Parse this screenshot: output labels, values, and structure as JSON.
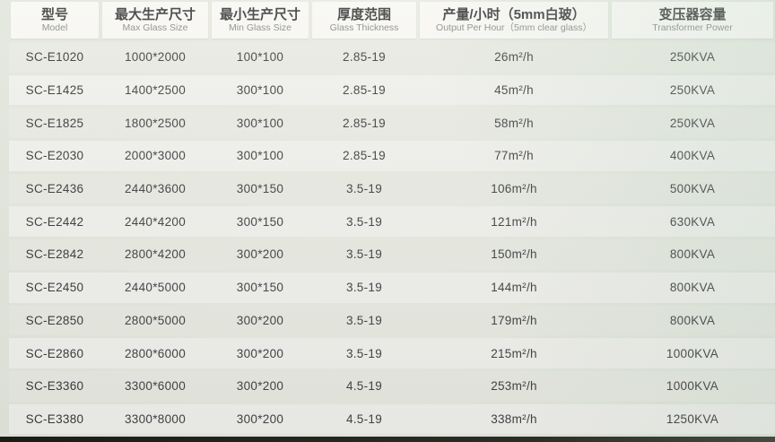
{
  "colors": {
    "page_background": "#e5e9df",
    "header_cell": "#f8f7f3",
    "row_odd": "#e8eae2",
    "row_even": "#f0f0ec",
    "text_primary": "#3f4243",
    "text_secondary": "#8a8d88",
    "bottom_edge": "#24241e"
  },
  "table": {
    "columns": [
      {
        "zh": "型号",
        "en": "Model"
      },
      {
        "zh": "最大生产尺寸",
        "en": "Max Glass Size"
      },
      {
        "zh": "最小生产尺寸",
        "en": "Min Glass Size"
      },
      {
        "zh": "厚度范围",
        "en": "Glass Thickness"
      },
      {
        "zh": "产量/小时（5mm白玻）",
        "en": "Output Per Hour（5mm clear glass）"
      },
      {
        "zh": "变压器容量",
        "en": "Transformer Power"
      }
    ],
    "rows": [
      [
        "SC-E1020",
        "1000*2000",
        "100*100",
        "2.85-19",
        "26m²/h",
        "250KVA"
      ],
      [
        "SC-E1425",
        "1400*2500",
        "300*100",
        "2.85-19",
        "45m²/h",
        "250KVA"
      ],
      [
        "SC-E1825",
        "1800*2500",
        "300*100",
        "2.85-19",
        "58m²/h",
        "250KVA"
      ],
      [
        "SC-E2030",
        "2000*3000",
        "300*100",
        "2.85-19",
        "77m²/h",
        "400KVA"
      ],
      [
        "SC-E2436",
        "2440*3600",
        "300*150",
        "3.5-19",
        "106m²/h",
        "500KVA"
      ],
      [
        "SC-E2442",
        "2440*4200",
        "300*150",
        "3.5-19",
        "121m²/h",
        "630KVA"
      ],
      [
        "SC-E2842",
        "2800*4200",
        "300*200",
        "3.5-19",
        "150m²/h",
        "800KVA"
      ],
      [
        "SC-E2450",
        "2440*5000",
        "300*150",
        "3.5-19",
        "144m²/h",
        "800KVA"
      ],
      [
        "SC-E2850",
        "2800*5000",
        "300*200",
        "3.5-19",
        "179m²/h",
        "800KVA"
      ],
      [
        "SC-E2860",
        "2800*6000",
        "300*200",
        "3.5-19",
        "215m²/h",
        "1000KVA"
      ],
      [
        "SC-E3360",
        "3300*6000",
        "300*200",
        "4.5-19",
        "253m²/h",
        "1000KVA"
      ],
      [
        "SC-E3380",
        "3300*8000",
        "300*200",
        "4.5-19",
        "338m²/h",
        "1250KVA"
      ]
    ]
  }
}
